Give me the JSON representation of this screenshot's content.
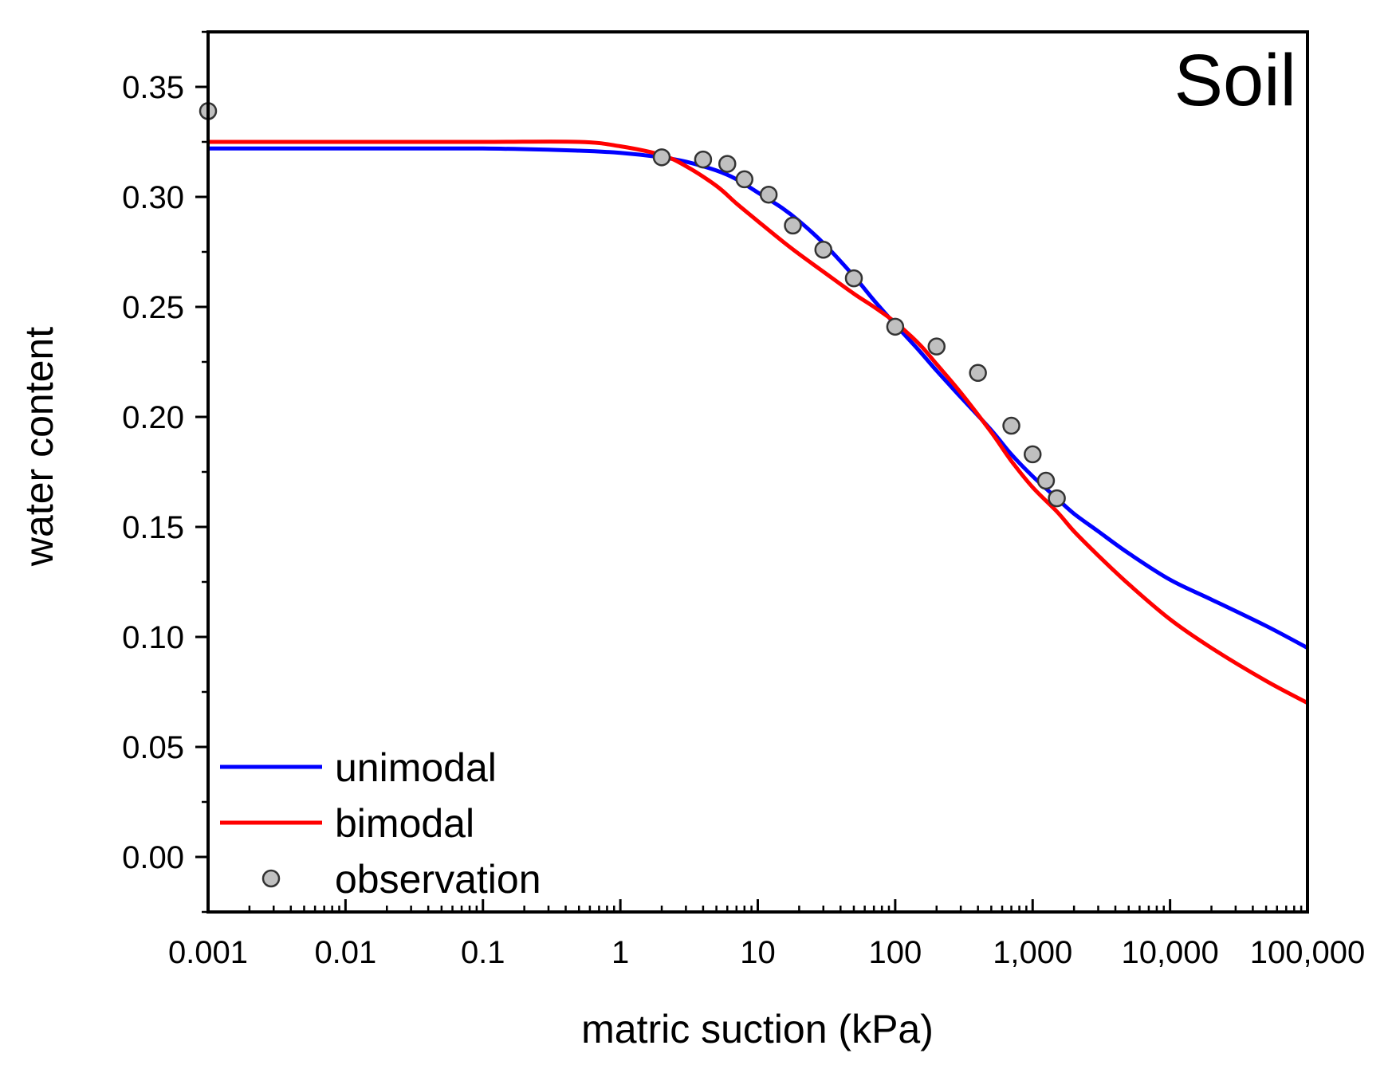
{
  "chart_data": {
    "type": "line",
    "title": "Soil",
    "xlabel": "matric suction (kPa)",
    "ylabel": "water content",
    "xscale": "log",
    "xlim": [
      0.001,
      100000
    ],
    "ylim": [
      -0.025,
      0.375
    ],
    "xticks": [
      {
        "value": 0.001,
        "label": "0.001"
      },
      {
        "value": 0.01,
        "label": "0.01"
      },
      {
        "value": 0.1,
        "label": "0.1"
      },
      {
        "value": 1,
        "label": "1"
      },
      {
        "value": 10,
        "label": "10"
      },
      {
        "value": 100,
        "label": "100"
      },
      {
        "value": 1000,
        "label": "1,000"
      },
      {
        "value": 10000,
        "label": "10,000"
      },
      {
        "value": 100000,
        "label": "100,000"
      }
    ],
    "yticks": [
      {
        "value": 0.0,
        "label": "0.00"
      },
      {
        "value": 0.05,
        "label": "0.05"
      },
      {
        "value": 0.1,
        "label": "0.10"
      },
      {
        "value": 0.15,
        "label": "0.15"
      },
      {
        "value": 0.2,
        "label": "0.20"
      },
      {
        "value": 0.25,
        "label": "0.25"
      },
      {
        "value": 0.3,
        "label": "0.30"
      },
      {
        "value": 0.35,
        "label": "0.35"
      }
    ],
    "grid": false,
    "legend_position": "bottom-left",
    "series": [
      {
        "name": "unimodal",
        "kind": "line",
        "color": "#0000ff",
        "x": [
          0.001,
          0.01,
          0.1,
          0.5,
          1,
          2,
          3,
          5,
          7,
          10,
          15,
          20,
          30,
          50,
          70,
          100,
          150,
          200,
          300,
          500,
          700,
          1000,
          1500,
          2000,
          3000,
          5000,
          10000,
          20000,
          50000,
          100000
        ],
        "y": [
          0.322,
          0.322,
          0.322,
          0.321,
          0.32,
          0.318,
          0.316,
          0.312,
          0.308,
          0.302,
          0.295,
          0.289,
          0.279,
          0.264,
          0.253,
          0.242,
          0.23,
          0.221,
          0.209,
          0.194,
          0.183,
          0.173,
          0.163,
          0.156,
          0.148,
          0.138,
          0.126,
          0.117,
          0.105,
          0.095
        ]
      },
      {
        "name": "bimodal",
        "kind": "line",
        "color": "#ff0000",
        "x": [
          0.001,
          0.01,
          0.1,
          0.5,
          1,
          2,
          3,
          5,
          7,
          10,
          15,
          20,
          30,
          50,
          70,
          100,
          150,
          200,
          300,
          500,
          700,
          1000,
          1500,
          2000,
          3000,
          5000,
          10000,
          20000,
          50000,
          100000
        ],
        "y": [
          0.325,
          0.325,
          0.325,
          0.325,
          0.323,
          0.319,
          0.314,
          0.305,
          0.297,
          0.289,
          0.28,
          0.274,
          0.266,
          0.256,
          0.25,
          0.243,
          0.233,
          0.224,
          0.211,
          0.193,
          0.18,
          0.168,
          0.157,
          0.148,
          0.137,
          0.124,
          0.108,
          0.095,
          0.08,
          0.07
        ]
      },
      {
        "name": "observation",
        "kind": "scatter",
        "color": "#c0c0c0",
        "x": [
          0.001,
          2,
          4,
          6,
          8,
          12,
          18,
          30,
          50,
          100,
          200,
          400,
          700,
          1000,
          1250,
          1500
        ],
        "y": [
          0.339,
          0.318,
          0.317,
          0.315,
          0.308,
          0.301,
          0.287,
          0.276,
          0.263,
          0.241,
          0.232,
          0.22,
          0.196,
          0.183,
          0.171,
          0.163
        ]
      }
    ]
  }
}
